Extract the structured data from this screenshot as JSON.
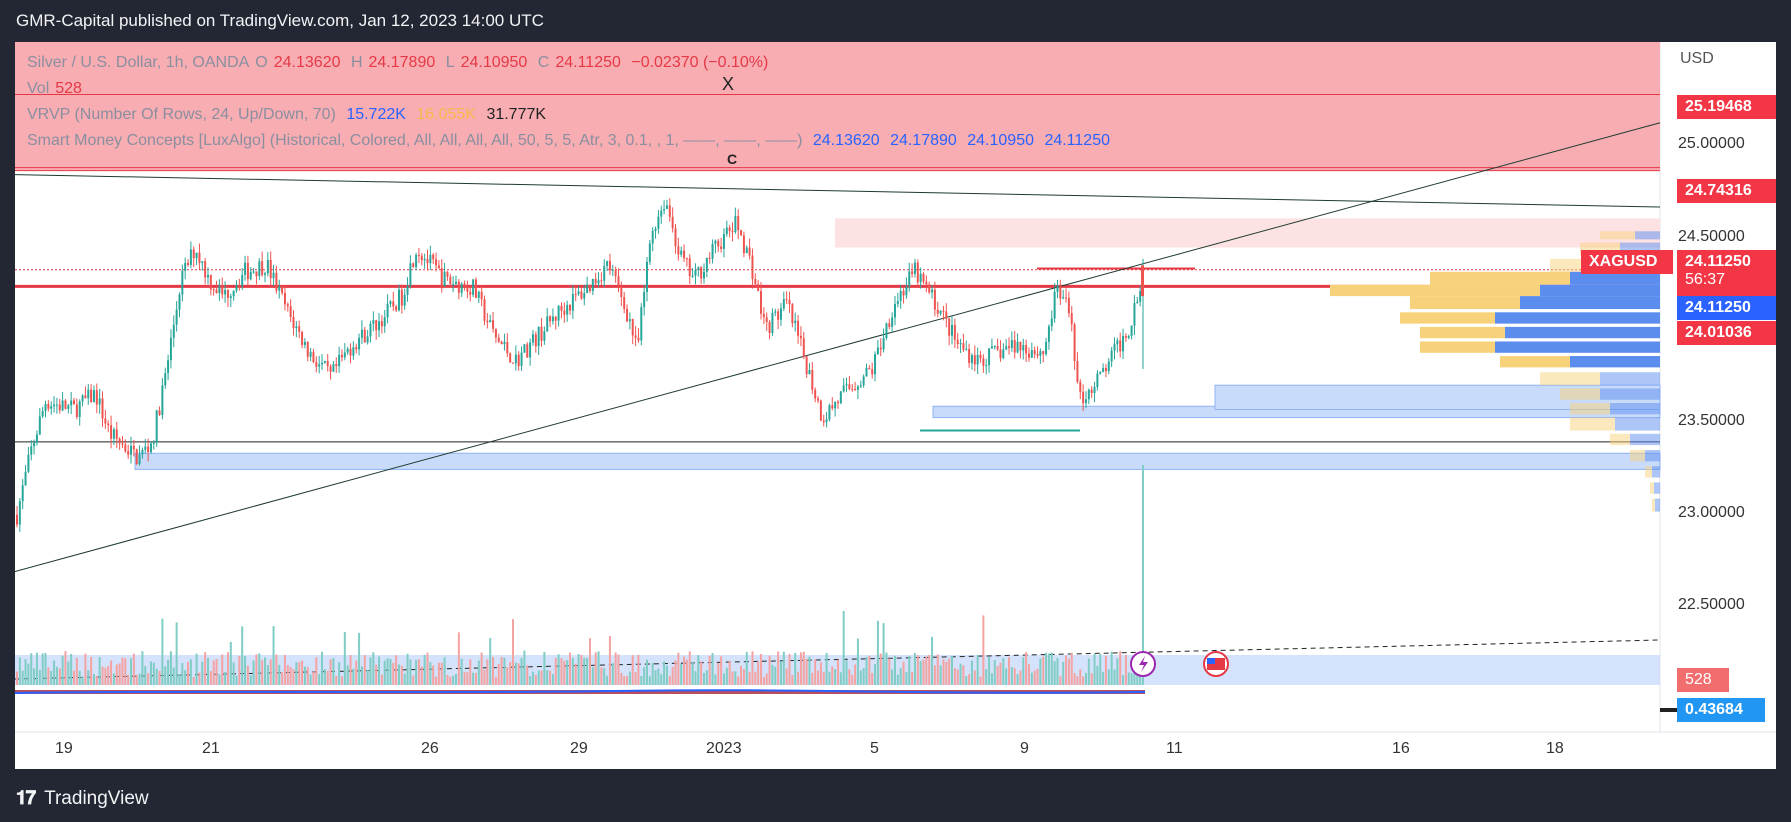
{
  "header": {
    "title": "GMR-Capital published on TradingView.com, Jan 12, 2023 14:00 UTC"
  },
  "footer": {
    "brand": "TradingView"
  },
  "legend": {
    "symbol_line": "Silver / U.S. Dollar, 1h, OANDA",
    "o_label": "O",
    "o_value": "24.13620",
    "h_label": "H",
    "h_value": "24.17890",
    "l_label": "L",
    "l_value": "24.10950",
    "c_label": "C",
    "c_value": "24.11250",
    "change": "−0.02370 (−0.10%)",
    "vol_label": "Vol",
    "vol_value": "528",
    "vrvp_label": "VRVP (Number Of Rows, 24, Up/Down, 70)",
    "vrvp_up": "15.722K",
    "vrvp_down": "16.055K",
    "vrvp_total": "31.777K",
    "smc_label": "Smart Money Concepts [LuxAlgo] (Historical, Colored, All, All, All, All, 50, 5, 5, Atr, 3, 0.1, , 1, ——, ——, ——)",
    "smc_values": [
      "24.13620",
      "24.17890",
      "24.10950",
      "24.11250"
    ]
  },
  "annotations": {
    "x_marker": "X",
    "c_marker": "C"
  },
  "price_axis": {
    "currency": "USD",
    "ticks": [
      "25.00000",
      "24.50000",
      "23.50000",
      "23.00000",
      "22.50000"
    ],
    "tags": {
      "resistance": "25.19468",
      "zone_top": "24.74316",
      "symbol": "XAGUSD",
      "last_price": "24.11250",
      "countdown": "56:37",
      "last_price_blue": "24.11250",
      "support": "24.01036",
      "volume": "528",
      "oscillator": "0.43684"
    }
  },
  "time_axis": {
    "labels": [
      "19",
      "21",
      "26",
      "29",
      "2023",
      "5",
      "9",
      "11",
      "16",
      "18"
    ]
  },
  "colors": {
    "bull": "#26a69a",
    "bear": "#ef5350",
    "supply_zone": "#f8a9ae",
    "demand_zone": "#c9dbfa",
    "vp_up": "#5b8def",
    "vp_down": "#f7d27a",
    "tag_red": "#f23645",
    "tag_blue": "#2962ff"
  },
  "chart_data": {
    "type": "candlestick",
    "title": "Silver / U.S. Dollar, 1h, OANDA",
    "ylim": [
      22.25,
      25.45
    ],
    "key_levels": [
      25.19468,
      24.74316,
      24.1125,
      24.01036,
      23.05
    ],
    "anchor_path": [
      [
        0,
        22.6
      ],
      [
        0.01,
        23.0
      ],
      [
        0.02,
        23.3
      ],
      [
        0.04,
        23.25
      ],
      [
        0.055,
        23.35
      ],
      [
        0.065,
        23.1
      ],
      [
        0.085,
        22.95
      ],
      [
        0.095,
        23.05
      ],
      [
        0.105,
        23.5
      ],
      [
        0.115,
        24.05
      ],
      [
        0.125,
        24.25
      ],
      [
        0.135,
        24.05
      ],
      [
        0.145,
        23.95
      ],
      [
        0.16,
        24.1
      ],
      [
        0.175,
        24.15
      ],
      [
        0.19,
        23.85
      ],
      [
        0.205,
        23.6
      ],
      [
        0.22,
        23.45
      ],
      [
        0.235,
        23.65
      ],
      [
        0.255,
        23.8
      ],
      [
        0.27,
        23.95
      ],
      [
        0.28,
        24.25
      ],
      [
        0.3,
        24.05
      ],
      [
        0.32,
        24.0
      ],
      [
        0.335,
        23.7
      ],
      [
        0.35,
        23.55
      ],
      [
        0.365,
        23.7
      ],
      [
        0.38,
        23.85
      ],
      [
        0.4,
        24.0
      ],
      [
        0.415,
        24.15
      ],
      [
        0.43,
        23.8
      ],
      [
        0.435,
        23.6
      ],
      [
        0.445,
        24.35
      ],
      [
        0.455,
        24.55
      ],
      [
        0.465,
        24.2
      ],
      [
        0.475,
        24.05
      ],
      [
        0.49,
        24.25
      ],
      [
        0.505,
        24.4
      ],
      [
        0.515,
        24.15
      ],
      [
        0.525,
        23.75
      ],
      [
        0.54,
        23.9
      ],
      [
        0.555,
        23.5
      ],
      [
        0.565,
        23.2
      ],
      [
        0.58,
        23.35
      ],
      [
        0.6,
        23.5
      ],
      [
        0.615,
        23.9
      ],
      [
        0.63,
        24.1
      ],
      [
        0.645,
        23.9
      ],
      [
        0.66,
        23.65
      ],
      [
        0.675,
        23.55
      ],
      [
        0.7,
        23.65
      ],
      [
        0.72,
        23.6
      ],
      [
        0.73,
        24.0
      ],
      [
        0.74,
        23.8
      ],
      [
        0.745,
        23.3
      ],
      [
        0.76,
        23.45
      ],
      [
        0.77,
        23.6
      ],
      [
        0.78,
        23.75
      ],
      [
        0.79,
        24.11
      ]
    ],
    "volume_range": [
      0,
      600
    ]
  }
}
